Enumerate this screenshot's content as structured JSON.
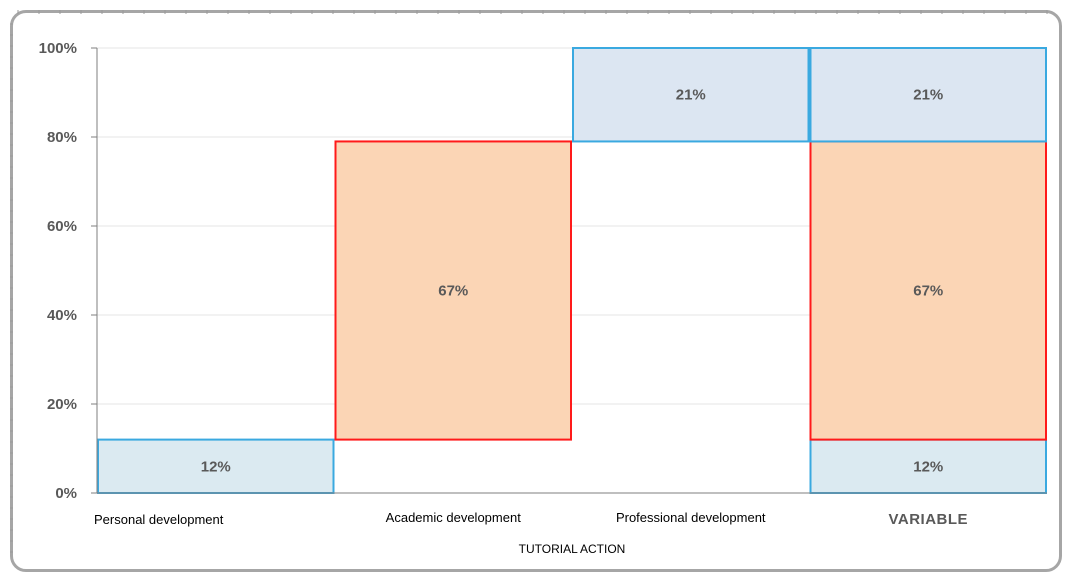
{
  "chart_data": {
    "type": "bar",
    "subtype": "waterfall-stacked",
    "categories": [
      "Personal development",
      "Academic development",
      "Professional development",
      "VARIABLE"
    ],
    "xlabel": "TUTORIAL ACTION",
    "ylabel": "",
    "ylim": [
      0,
      100
    ],
    "yticks": [
      "0%",
      "20%",
      "40%",
      "60%",
      "80%",
      "100%"
    ],
    "ytick_values": [
      0,
      20,
      40,
      60,
      80,
      100
    ],
    "grid": true,
    "legend": "none",
    "segments": [
      {
        "category": "Personal development",
        "start": 0,
        "value": 12,
        "label": "12%",
        "fill": "#dbeaf1",
        "stroke": "#3aa9e0"
      },
      {
        "category": "Academic development",
        "start": 12,
        "value": 67,
        "label": "67%",
        "fill": "#fbd5b5",
        "stroke": "#ff1a1a"
      },
      {
        "category": "Professional development",
        "start": 79,
        "value": 21,
        "label": "21%",
        "fill": "#dce6f2",
        "stroke": "#3aa9e0"
      },
      {
        "category": "VARIABLE",
        "start": 0,
        "value": 12,
        "label": "12%",
        "fill": "#dbeaf1",
        "stroke": "#3aa9e0"
      },
      {
        "category": "VARIABLE",
        "start": 12,
        "value": 67,
        "label": "67%",
        "fill": "#fbd5b5",
        "stroke": "#ff1a1a"
      },
      {
        "category": "VARIABLE",
        "start": 79,
        "value": 21,
        "label": "21%",
        "fill": "#dce6f2",
        "stroke": "#3aa9e0"
      }
    ]
  }
}
